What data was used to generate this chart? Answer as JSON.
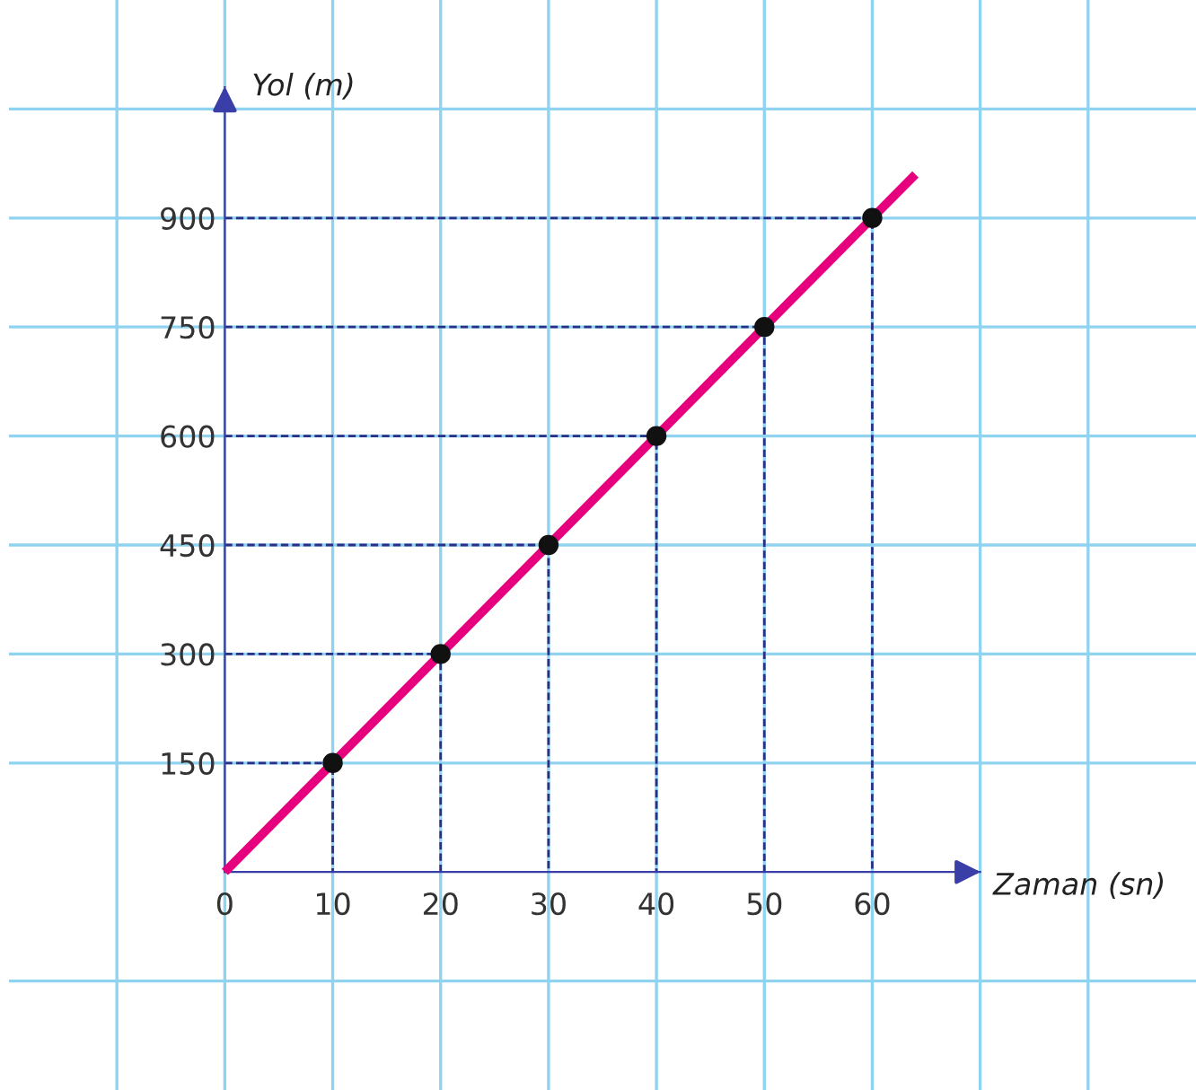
{
  "chart_data": {
    "type": "line",
    "xlabel": "Zaman (sn)",
    "ylabel": "Yol (m)",
    "series": [
      {
        "marker": "none",
        "color": "#e6007e",
        "x": [
          0,
          64
        ],
        "values": [
          0,
          960
        ]
      },
      {
        "marker": "none",
        "line_style": "dashed",
        "color": "#2b2f86",
        "x": [
          0,
          10,
          10
        ],
        "values": [
          150,
          150,
          0
        ]
      },
      {
        "marker": "none",
        "line_style": "dashed",
        "color": "#2b2f86",
        "x": [
          0,
          20,
          20
        ],
        "values": [
          300,
          300,
          0
        ]
      },
      {
        "marker": "none",
        "line_style": "dashed",
        "color": "#2b2f86",
        "x": [
          0,
          30,
          30
        ],
        "values": [
          450,
          450,
          0
        ]
      },
      {
        "marker": "none",
        "line_style": "dashed",
        "color": "#2b2f86",
        "x": [
          0,
          40,
          40
        ],
        "values": [
          600,
          600,
          0
        ]
      },
      {
        "marker": "none",
        "line_style": "dashed",
        "color": "#2b2f86",
        "x": [
          0,
          50,
          50
        ],
        "values": [
          750,
          750,
          0
        ]
      },
      {
        "marker": "none",
        "line_style": "dashed",
        "color": "#2b2f86",
        "x": [
          0,
          60,
          60
        ],
        "values": [
          900,
          900,
          0
        ]
      },
      {
        "type": "scatter",
        "color": "#111111",
        "x": [
          10,
          20,
          30,
          40,
          50,
          60
        ],
        "values": [
          150,
          300,
          450,
          600,
          750,
          900
        ]
      }
    ],
    "xlim": [
      -20,
      90
    ],
    "ylim": [
      -300,
      1200
    ],
    "xticks": [
      {
        "value": -10,
        "label": null
      },
      {
        "value": 0,
        "label": "0"
      },
      10,
      20,
      30,
      40,
      50,
      60,
      {
        "value": 70,
        "label": null
      },
      {
        "value": 80,
        "label": null
      }
    ],
    "yticks": [
      {
        "value": -150,
        "label": null
      },
      150,
      300,
      450,
      600,
      750,
      900,
      {
        "value": 1050,
        "label": null
      }
    ],
    "grid": true,
    "marker": "circle",
    "line_style": "solid"
  }
}
